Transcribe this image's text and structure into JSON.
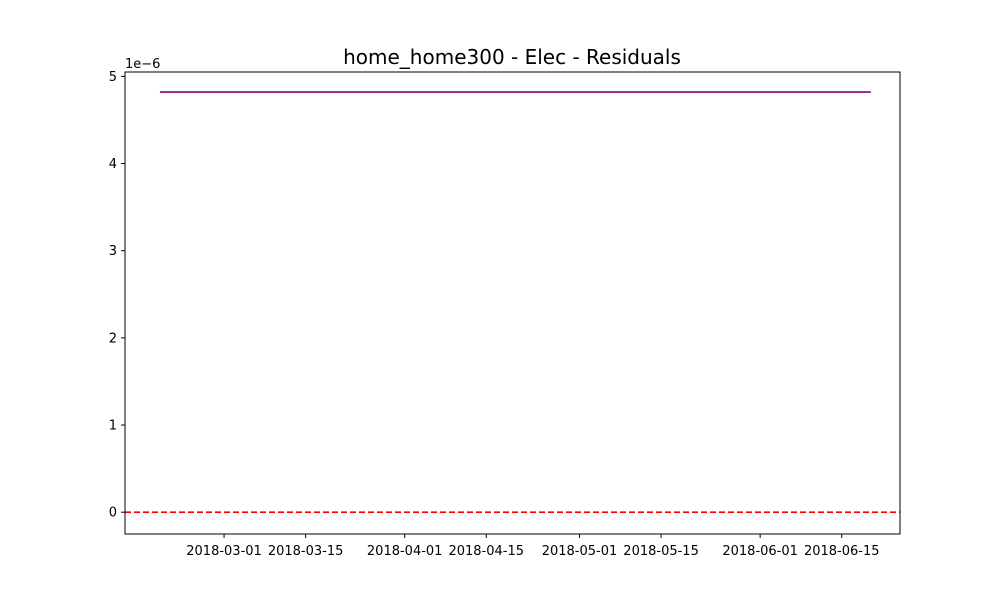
{
  "chart_data": {
    "type": "line",
    "title": "home_home300 - Elec - Residuals",
    "xlabel": "",
    "ylabel": "",
    "y_scale_label": "1e−6",
    "xlim": [
      "2018-02-12",
      "2018-06-25"
    ],
    "ylim": [
      -0.25,
      5.05
    ],
    "x_ticks": [
      "2018-03-01",
      "2018-03-15",
      "2018-04-01",
      "2018-04-15",
      "2018-05-01",
      "2018-05-15",
      "2018-06-01",
      "2018-06-15"
    ],
    "y_ticks": [
      {
        "value": 0,
        "label": "0"
      },
      {
        "value": 1,
        "label": "1"
      },
      {
        "value": 2,
        "label": "2"
      },
      {
        "value": 3,
        "label": "3"
      },
      {
        "value": 4,
        "label": "4"
      },
      {
        "value": 5,
        "label": "5"
      }
    ],
    "grid": false,
    "series": [
      {
        "color": "#800080",
        "style": "solid",
        "points": [
          {
            "x": "2018-02-18",
            "y": 4.82
          },
          {
            "x": "2018-06-20",
            "y": 4.82
          }
        ]
      }
    ],
    "reference_lines": [
      {
        "y": 0,
        "color": "#ff0000",
        "style": "dashed"
      }
    ]
  }
}
